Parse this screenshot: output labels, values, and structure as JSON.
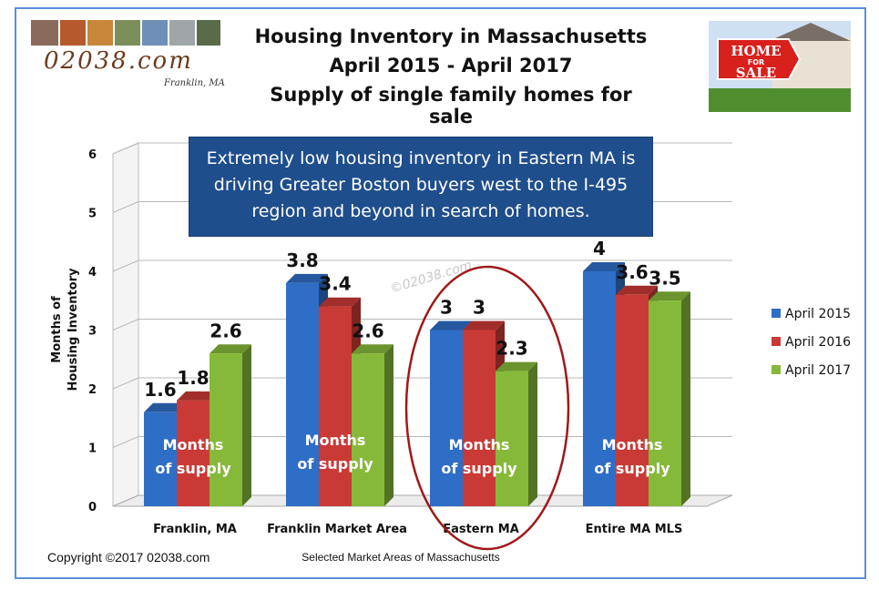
{
  "header": {
    "title_line1": "Housing Inventory in Massachusetts",
    "title_line2": "April 2015 - April 2017",
    "title_line3": "Supply of single family homes for sale",
    "logo_text": "02038.com",
    "logo_sub": "Franklin, MA",
    "sign_line1": "HOME",
    "sign_line2": "FOR",
    "sign_line3": "SALE"
  },
  "callout": {
    "line1": "Extremely low housing inventory in Eastern MA is",
    "line2": "driving Greater Boston buyers west to the I-495",
    "line3": "region and beyond in search of homes."
  },
  "watermark": "©02038.com",
  "footer": {
    "copyright": "Copyright ©2017  02038.com"
  },
  "chart_data": {
    "type": "bar",
    "categories": [
      "Franklin, MA",
      "Franklin Market Area",
      "Eastern MA",
      "Entire MA MLS"
    ],
    "series": [
      {
        "name": "April 2015",
        "values": [
          1.6,
          3.8,
          3,
          4
        ],
        "color": "#2f6ec7"
      },
      {
        "name": "April 2016",
        "values": [
          1.8,
          3.4,
          3,
          3.6
        ],
        "color": "#c93a36"
      },
      {
        "name": "April 2017",
        "values": [
          2.6,
          2.6,
          2.3,
          3.5
        ],
        "color": "#86b93a"
      }
    ],
    "ylabel_line1": "Months of",
    "ylabel_line2": "Housing Inventory",
    "xlabel": "Selected Market Areas of Massachusetts",
    "ylim": [
      0,
      6
    ],
    "yticks": [
      0,
      1,
      2,
      3,
      4,
      5,
      6
    ],
    "bar_note_line1": "Months",
    "bar_note_line2": "of supply",
    "legend_position": "right",
    "highlighted_category": "Eastern MA",
    "grid": true
  }
}
